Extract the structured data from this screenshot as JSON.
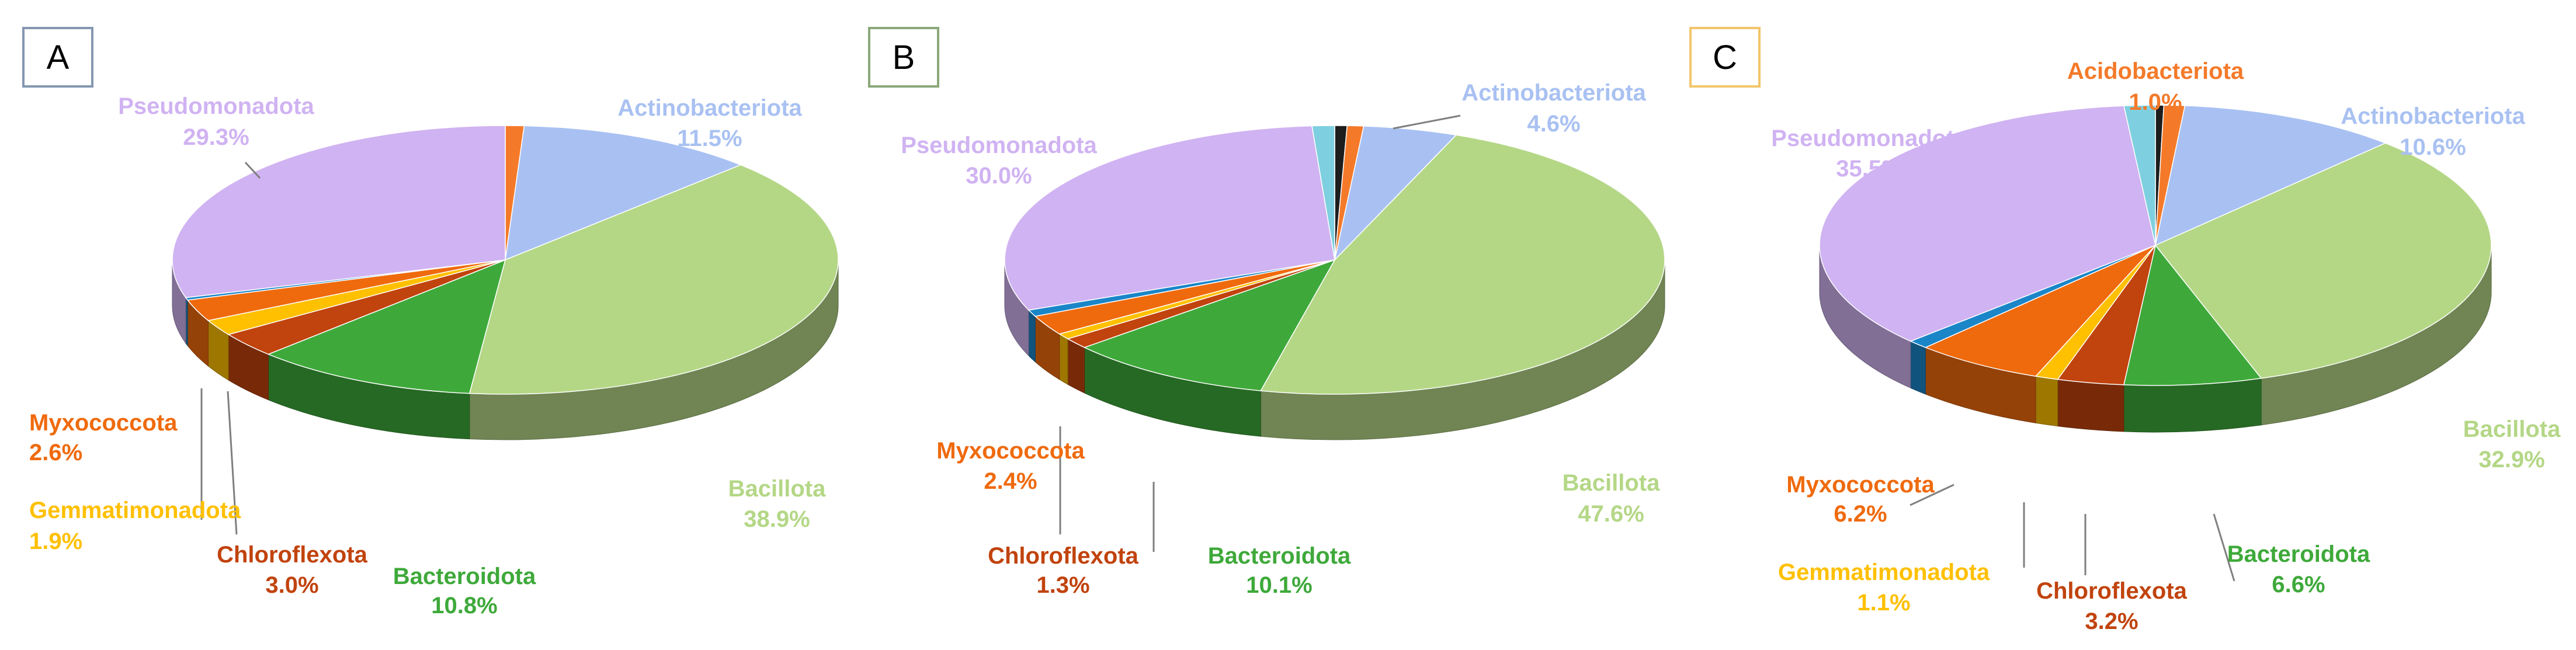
{
  "colors": {
    "Acidobacteriota": "#f47a2a",
    "Actinobacteriota": "#a9c1f2",
    "Bacillota": "#b4d786",
    "Bacteroidota": "#3ea93a",
    "Chloroflexota": "#c1430d",
    "Gemmatimonadota": "#ffc000",
    "Myxococcota": "#ef6a0d",
    "Other": "#1a86c8",
    "Pseudomonadota": "#d0b3f2",
    "Minor": "#7ed0e0",
    "Dark": "#1d1d1d"
  },
  "chart_data": [
    {
      "type": "pie",
      "panel": "A",
      "panel_border_color": "#8497b0",
      "slices": [
        {
          "category": "Acidobacteriota",
          "value": 0.9
        },
        {
          "category": "Actinobacteriota",
          "value": 11.5,
          "label": "Actinobacteriota",
          "pct": "11.5%"
        },
        {
          "category": "Bacillota",
          "value": 38.9,
          "label": "Bacillota",
          "pct": "38.9%"
        },
        {
          "category": "Bacteroidota",
          "value": 10.8,
          "label": "Bacteroidota",
          "pct": "10.8%"
        },
        {
          "category": "Chloroflexota",
          "value": 3.0,
          "label": "Chloroflexota",
          "pct": "3.0%"
        },
        {
          "category": "Gemmatimonadota",
          "value": 1.9,
          "label": "Gemmatimonadota",
          "pct": "1.9%"
        },
        {
          "category": "Myxococcota",
          "value": 2.6,
          "label": "Myxococcota",
          "pct": "2.6%"
        },
        {
          "category": "Other",
          "value": 0.3
        },
        {
          "category": "Pseudomonadota",
          "value": 29.3,
          "label": "Pseudomonadota",
          "pct": "29.3%"
        }
      ]
    },
    {
      "type": "pie",
      "panel": "B",
      "panel_border_color": "#8aa87a",
      "slices": [
        {
          "category": "Dark",
          "value": 0.6
        },
        {
          "category": "Acidobacteriota",
          "value": 0.8
        },
        {
          "category": "Actinobacteriota",
          "value": 4.6,
          "label": "Actinobacteriota",
          "pct": "4.6%"
        },
        {
          "category": "Bacillota",
          "value": 47.6,
          "label": "Bacillota",
          "pct": "47.6%"
        },
        {
          "category": "Bacteroidota",
          "value": 10.1,
          "label": "Bacteroidota",
          "pct": "10.1%"
        },
        {
          "category": "Chloroflexota",
          "value": 1.3,
          "label": "Chloroflexota",
          "pct": "1.3%"
        },
        {
          "category": "Gemmatimonadota",
          "value": 0.7
        },
        {
          "category": "Myxococcota",
          "value": 2.4,
          "label": "Myxococcota",
          "pct": "2.4%"
        },
        {
          "category": "Other",
          "value": 0.8
        },
        {
          "category": "Pseudomonadota",
          "value": 30.0,
          "label": "Pseudomonadota",
          "pct": "30.0%"
        },
        {
          "category": "Minor",
          "value": 1.1
        }
      ]
    },
    {
      "type": "pie",
      "panel": "C",
      "panel_border_color": "#f2c56b",
      "slices": [
        {
          "category": "Dark",
          "value": 0.4
        },
        {
          "category": "Acidobacteriota",
          "value": 1.0,
          "label": "Acidobacteriota",
          "pct": "1.0%"
        },
        {
          "category": "Actinobacteriota",
          "value": 10.6,
          "label": "Actinobacteriota",
          "pct": "10.6%"
        },
        {
          "category": "Bacillota",
          "value": 32.9,
          "label": "Bacillota",
          "pct": "32.9%"
        },
        {
          "category": "Bacteroidota",
          "value": 6.6,
          "label": "Bacteroidota",
          "pct": "6.6%"
        },
        {
          "category": "Chloroflexota",
          "value": 3.2,
          "label": "Chloroflexota",
          "pct": "3.2%"
        },
        {
          "category": "Gemmatimonadota",
          "value": 1.1,
          "label": "Gemmatimonadota",
          "pct": "1.1%"
        },
        {
          "category": "Myxococcota",
          "value": 6.2,
          "label": "Myxococcota",
          "pct": "6.2%"
        },
        {
          "category": "Other",
          "value": 1.0
        },
        {
          "category": "Pseudomonadota",
          "value": 35.5,
          "label": "Pseudomonadota",
          "pct": "35.5%"
        },
        {
          "category": "Minor",
          "value": 1.5
        }
      ]
    }
  ]
}
